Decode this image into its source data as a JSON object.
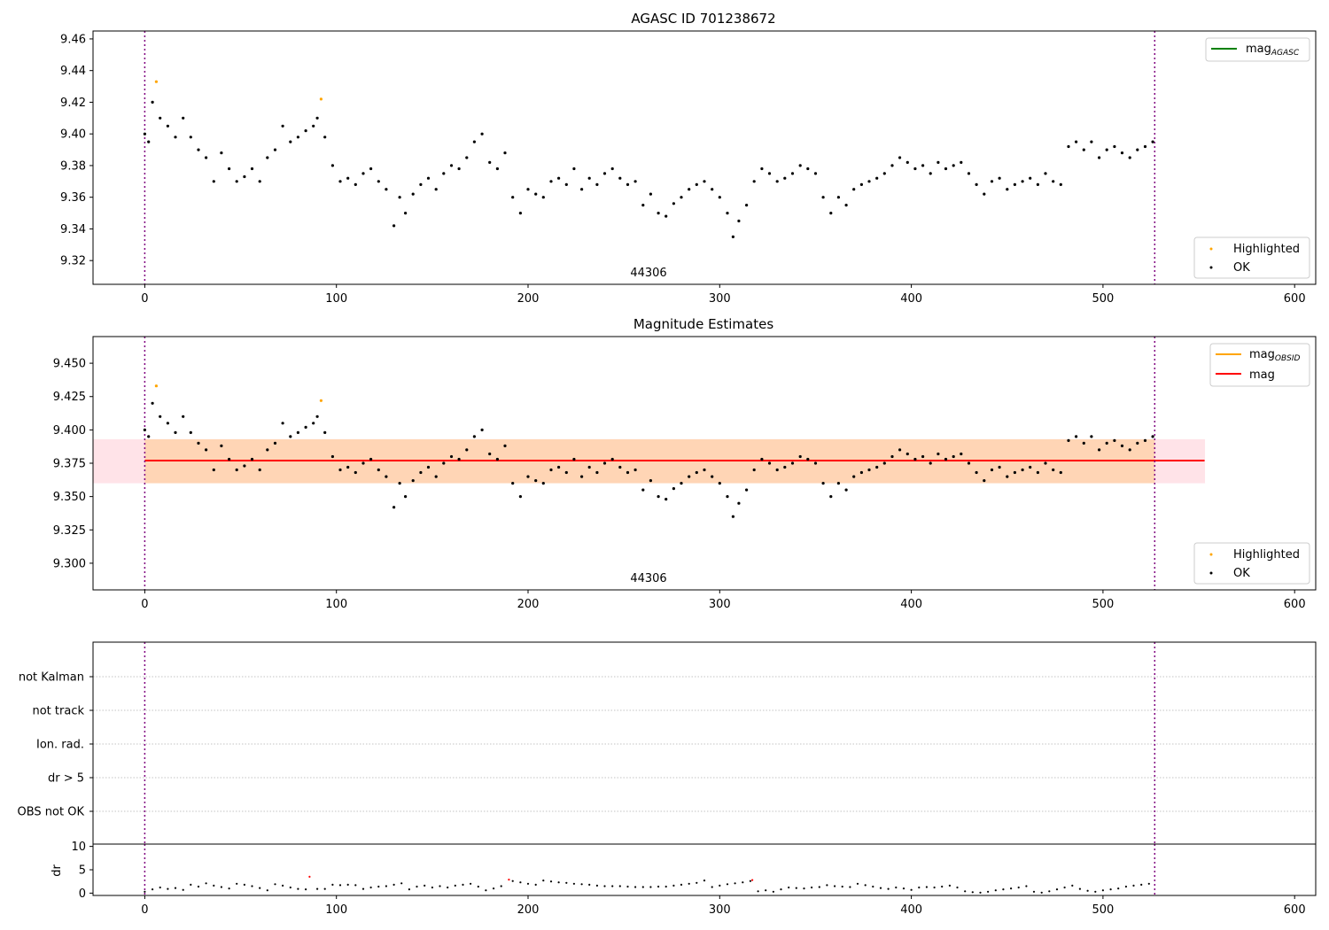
{
  "chart_data": [
    {
      "type": "scatter",
      "title": "AGASC ID 701238672",
      "annotation": "44306",
      "xlim": [
        -27,
        611
      ],
      "ylim": [
        9.305,
        9.465
      ],
      "xticks": [
        0,
        100,
        200,
        300,
        400,
        500,
        600
      ],
      "yticks": [
        9.32,
        9.34,
        9.36,
        9.38,
        9.4,
        9.42,
        9.44,
        9.46
      ],
      "ytick_labels": [
        "9.32",
        "9.34",
        "9.36",
        "9.38",
        "9.40",
        "9.42",
        "9.44",
        "9.46"
      ],
      "vlines": [
        0,
        527
      ],
      "legend_upper": [
        {
          "label": "mag",
          "sub": "AGASC",
          "color": "#008000"
        }
      ],
      "legend_lower": [
        {
          "label": "Highlighted",
          "color": "#ffa500"
        },
        {
          "label": "OK",
          "color": "#000000"
        }
      ],
      "series": [
        {
          "name": "Highlighted",
          "color": "#ffa500",
          "x": [
            6,
            92
          ],
          "y": [
            9.433,
            9.422
          ]
        },
        {
          "name": "OK",
          "color": "#000000",
          "x": [
            0,
            2,
            4,
            8,
            12,
            16,
            20,
            24,
            28,
            32,
            36,
            40,
            44,
            48,
            52,
            56,
            60,
            64,
            68,
            72,
            76,
            80,
            84,
            88,
            90,
            94,
            98,
            102,
            106,
            110,
            114,
            118,
            122,
            126,
            130,
            133,
            136,
            140,
            144,
            148,
            152,
            156,
            160,
            164,
            168,
            172,
            176,
            180,
            184,
            188,
            192,
            196,
            200,
            204,
            208,
            212,
            216,
            220,
            224,
            228,
            232,
            236,
            240,
            244,
            248,
            252,
            256,
            260,
            264,
            268,
            272,
            276,
            280,
            284,
            288,
            292,
            296,
            300,
            304,
            307,
            310,
            314,
            318,
            322,
            326,
            330,
            334,
            338,
            342,
            346,
            350,
            354,
            358,
            362,
            366,
            370,
            374,
            378,
            382,
            386,
            390,
            394,
            398,
            402,
            406,
            410,
            414,
            418,
            422,
            426,
            430,
            434,
            438,
            442,
            446,
            450,
            454,
            458,
            462,
            466,
            470,
            474,
            478,
            482,
            486,
            490,
            494,
            498,
            502,
            506,
            510,
            514,
            518,
            522,
            526
          ],
          "y": [
            9.4,
            9.395,
            9.42,
            9.41,
            9.405,
            9.398,
            9.41,
            9.398,
            9.39,
            9.385,
            9.37,
            9.388,
            9.378,
            9.37,
            9.373,
            9.378,
            9.37,
            9.385,
            9.39,
            9.405,
            9.395,
            9.398,
            9.402,
            9.405,
            9.41,
            9.398,
            9.38,
            9.37,
            9.372,
            9.368,
            9.375,
            9.378,
            9.37,
            9.365,
            9.342,
            9.36,
            9.35,
            9.362,
            9.368,
            9.372,
            9.365,
            9.375,
            9.38,
            9.378,
            9.385,
            9.395,
            9.4,
            9.382,
            9.378,
            9.388,
            9.36,
            9.35,
            9.365,
            9.362,
            9.36,
            9.37,
            9.372,
            9.368,
            9.378,
            9.365,
            9.372,
            9.368,
            9.375,
            9.378,
            9.372,
            9.368,
            9.37,
            9.355,
            9.362,
            9.35,
            9.348,
            9.356,
            9.36,
            9.365,
            9.368,
            9.37,
            9.365,
            9.36,
            9.35,
            9.335,
            9.345,
            9.355,
            9.37,
            9.378,
            9.375,
            9.37,
            9.372,
            9.375,
            9.38,
            9.378,
            9.375,
            9.36,
            9.35,
            9.36,
            9.355,
            9.365,
            9.368,
            9.37,
            9.372,
            9.375,
            9.38,
            9.385,
            9.382,
            9.378,
            9.38,
            9.375,
            9.382,
            9.378,
            9.38,
            9.382,
            9.375,
            9.368,
            9.362,
            9.37,
            9.372,
            9.365,
            9.368,
            9.37,
            9.372,
            9.368,
            9.375,
            9.37,
            9.368,
            9.392,
            9.395,
            9.39,
            9.395,
            9.385,
            9.39,
            9.392,
            9.388,
            9.385,
            9.39,
            9.392,
            9.395
          ]
        }
      ]
    },
    {
      "type": "scatter",
      "title": "Magnitude Estimates",
      "annotation": "44306",
      "xlim": [
        -27,
        611
      ],
      "ylim": [
        9.28,
        9.47
      ],
      "xticks": [
        0,
        100,
        200,
        300,
        400,
        500,
        600
      ],
      "yticks": [
        9.3,
        9.325,
        9.35,
        9.375,
        9.4,
        9.425,
        9.45
      ],
      "ytick_labels": [
        "9.300",
        "9.325",
        "9.350",
        "9.375",
        "9.400",
        "9.425",
        "9.450"
      ],
      "vlines": [
        0,
        527
      ],
      "mag_line": {
        "value": 9.377,
        "color": "#ff0000"
      },
      "mag_band": {
        "low": 9.36,
        "high": 9.393,
        "x": [
          -27,
          553
        ],
        "color": "#ffc0cb"
      },
      "obsid_band": {
        "low": 9.36,
        "high": 9.393,
        "x": [
          0,
          527
        ],
        "color": "#ffa500"
      },
      "legend_upper": [
        {
          "label": "mag",
          "sub": "OBSID",
          "color": "#ffa500"
        },
        {
          "label": "mag",
          "sub": "",
          "color": "#ff0000"
        }
      ],
      "legend_lower": [
        {
          "label": "Highlighted",
          "color": "#ffa500"
        },
        {
          "label": "OK",
          "color": "#000000"
        }
      ],
      "series": [
        {
          "name": "Highlighted",
          "color": "#ffa500",
          "x": [
            6,
            92
          ],
          "y": [
            9.433,
            9.422
          ]
        },
        {
          "name": "OK",
          "color": "#000000",
          "x": [
            0,
            2,
            4,
            8,
            12,
            16,
            20,
            24,
            28,
            32,
            36,
            40,
            44,
            48,
            52,
            56,
            60,
            64,
            68,
            72,
            76,
            80,
            84,
            88,
            90,
            94,
            98,
            102,
            106,
            110,
            114,
            118,
            122,
            126,
            130,
            133,
            136,
            140,
            144,
            148,
            152,
            156,
            160,
            164,
            168,
            172,
            176,
            180,
            184,
            188,
            192,
            196,
            200,
            204,
            208,
            212,
            216,
            220,
            224,
            228,
            232,
            236,
            240,
            244,
            248,
            252,
            256,
            260,
            264,
            268,
            272,
            276,
            280,
            284,
            288,
            292,
            296,
            300,
            304,
            307,
            310,
            314,
            318,
            322,
            326,
            330,
            334,
            338,
            342,
            346,
            350,
            354,
            358,
            362,
            366,
            370,
            374,
            378,
            382,
            386,
            390,
            394,
            398,
            402,
            406,
            410,
            414,
            418,
            422,
            426,
            430,
            434,
            438,
            442,
            446,
            450,
            454,
            458,
            462,
            466,
            470,
            474,
            478,
            482,
            486,
            490,
            494,
            498,
            502,
            506,
            510,
            514,
            518,
            522,
            526
          ],
          "y": [
            9.4,
            9.395,
            9.42,
            9.41,
            9.405,
            9.398,
            9.41,
            9.398,
            9.39,
            9.385,
            9.37,
            9.388,
            9.378,
            9.37,
            9.373,
            9.378,
            9.37,
            9.385,
            9.39,
            9.405,
            9.395,
            9.398,
            9.402,
            9.405,
            9.41,
            9.398,
            9.38,
            9.37,
            9.372,
            9.368,
            9.375,
            9.378,
            9.37,
            9.365,
            9.342,
            9.36,
            9.35,
            9.362,
            9.368,
            9.372,
            9.365,
            9.375,
            9.38,
            9.378,
            9.385,
            9.395,
            9.4,
            9.382,
            9.378,
            9.388,
            9.36,
            9.35,
            9.365,
            9.362,
            9.36,
            9.37,
            9.372,
            9.368,
            9.378,
            9.365,
            9.372,
            9.368,
            9.375,
            9.378,
            9.372,
            9.368,
            9.37,
            9.355,
            9.362,
            9.35,
            9.348,
            9.356,
            9.36,
            9.365,
            9.368,
            9.37,
            9.365,
            9.36,
            9.35,
            9.335,
            9.345,
            9.355,
            9.37,
            9.378,
            9.375,
            9.37,
            9.372,
            9.375,
            9.38,
            9.378,
            9.375,
            9.36,
            9.35,
            9.36,
            9.355,
            9.365,
            9.368,
            9.37,
            9.372,
            9.375,
            9.38,
            9.385,
            9.382,
            9.378,
            9.38,
            9.375,
            9.382,
            9.378,
            9.38,
            9.382,
            9.375,
            9.368,
            9.362,
            9.37,
            9.372,
            9.365,
            9.368,
            9.37,
            9.372,
            9.368,
            9.375,
            9.37,
            9.368,
            9.392,
            9.395,
            9.39,
            9.395,
            9.385,
            9.39,
            9.392,
            9.388,
            9.385,
            9.39,
            9.392,
            9.395
          ]
        }
      ]
    },
    {
      "type": "scatter",
      "title": "",
      "xlim": [
        -27,
        611
      ],
      "categories": [
        "not Kalman",
        "not track",
        "Ion. rad.",
        "dr > 5",
        "OBS not OK"
      ],
      "vlines": [
        0,
        527
      ],
      "grid": true,
      "series": []
    },
    {
      "type": "scatter",
      "title": "",
      "ylabel": "dr",
      "xlim": [
        -27,
        611
      ],
      "ylim": [
        -0.5,
        10.5
      ],
      "xticks": [
        0,
        100,
        200,
        300,
        400,
        500,
        600
      ],
      "yticks": [
        0,
        5,
        10
      ],
      "ytick_labels": [
        "0",
        "5",
        "10"
      ],
      "vlines": [
        0,
        527
      ],
      "series": [
        {
          "name": "OK",
          "color": "#000000",
          "x": [
            0,
            4,
            8,
            12,
            16,
            20,
            24,
            28,
            32,
            36,
            40,
            44,
            48,
            52,
            56,
            60,
            64,
            68,
            72,
            76,
            80,
            84,
            90,
            94,
            98,
            102,
            106,
            110,
            114,
            118,
            122,
            126,
            130,
            134,
            138,
            142,
            146,
            150,
            154,
            158,
            162,
            166,
            170,
            174,
            178,
            182,
            186,
            192,
            196,
            200,
            204,
            208,
            212,
            216,
            220,
            224,
            228,
            232,
            236,
            240,
            244,
            248,
            252,
            256,
            260,
            264,
            268,
            272,
            276,
            280,
            284,
            288,
            292,
            296,
            300,
            304,
            308,
            312,
            316,
            320,
            324,
            328,
            332,
            336,
            340,
            344,
            348,
            352,
            356,
            360,
            364,
            368,
            372,
            376,
            380,
            384,
            388,
            392,
            396,
            400,
            404,
            408,
            412,
            416,
            420,
            424,
            428,
            432,
            436,
            440,
            444,
            448,
            452,
            456,
            460,
            464,
            468,
            472,
            476,
            480,
            484,
            488,
            492,
            496,
            500,
            504,
            508,
            512,
            516,
            520,
            524
          ],
          "y": [
            0.3,
            0.8,
            1.2,
            0.9,
            1.1,
            0.7,
            1.8,
            1.4,
            2.1,
            1.6,
            1.3,
            1.0,
            2.0,
            1.8,
            1.5,
            1.1,
            0.6,
            1.9,
            1.6,
            1.2,
            0.9,
            0.8,
            0.9,
            0.9,
            1.8,
            1.7,
            1.8,
            1.7,
            0.9,
            1.2,
            1.4,
            1.5,
            1.8,
            2.1,
            0.8,
            1.4,
            1.6,
            1.2,
            1.5,
            1.2,
            1.6,
            1.8,
            2.0,
            1.4,
            0.6,
            1.0,
            1.5,
            2.6,
            2.3,
            2.0,
            1.8,
            2.7,
            2.5,
            2.3,
            2.2,
            2.0,
            1.9,
            1.8,
            1.6,
            1.5,
            1.5,
            1.5,
            1.4,
            1.3,
            1.3,
            1.3,
            1.4,
            1.4,
            1.6,
            1.8,
            2.0,
            2.2,
            2.7,
            1.3,
            1.6,
            1.9,
            2.1,
            2.3,
            2.6,
            0.4,
            0.6,
            0.3,
            0.8,
            1.2,
            1.1,
            1.0,
            1.2,
            1.3,
            1.7,
            1.5,
            1.4,
            1.3,
            2.0,
            1.7,
            1.4,
            1.1,
            0.9,
            1.2,
            1.0,
            0.7,
            1.2,
            1.3,
            1.2,
            1.4,
            1.6,
            1.2,
            0.4,
            0.2,
            0.1,
            0.3,
            0.6,
            0.8,
            1.0,
            1.2,
            1.5,
            0.3,
            0.1,
            0.4,
            0.8,
            1.2,
            1.6,
            0.9,
            0.5,
            0.3,
            0.6,
            0.8,
            1.0,
            1.4,
            1.6,
            1.8,
            2.0
          ]
        },
        {
          "name": "Highlighted",
          "color": "#ff0000",
          "x": [
            86,
            190,
            317
          ],
          "y": [
            3.5,
            2.9,
            2.8
          ]
        }
      ]
    }
  ]
}
